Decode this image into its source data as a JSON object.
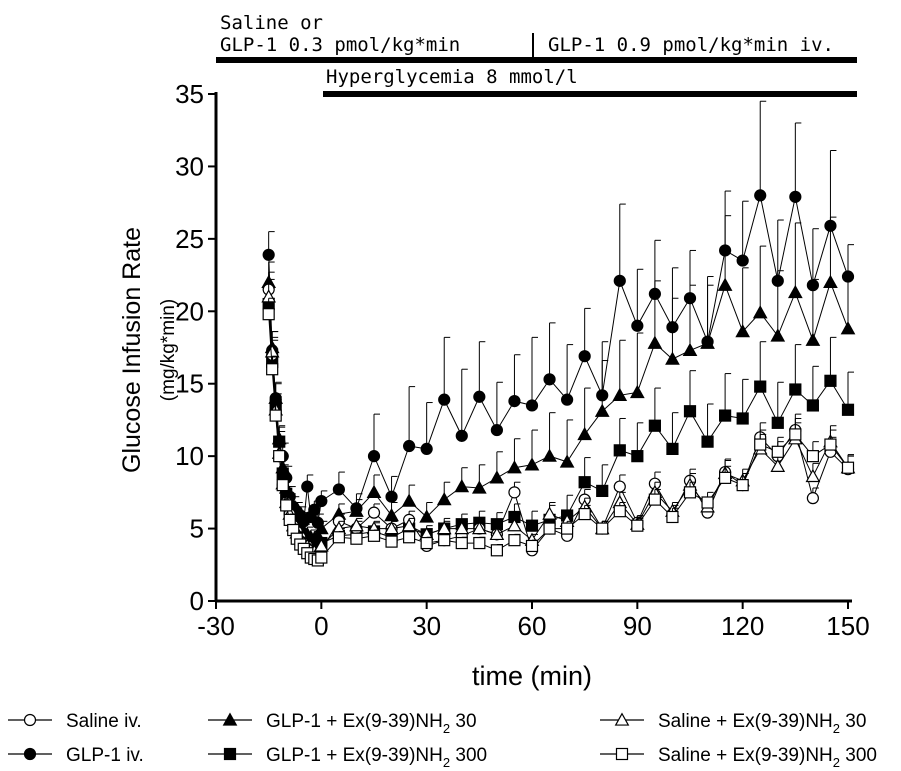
{
  "header": {
    "phase1_line1": "Saline or",
    "phase1_line2": "GLP-1 0.3 pmol/kg*min",
    "phase2": "GLP-1 0.9 pmol/kg*min iv.",
    "hyper": "Hyperglycemia 8 mmol/l"
  },
  "chart_data": {
    "type": "line",
    "xlabel": "time (min)",
    "ylabel": "Glucose Infusion Rate",
    "ylabel_unit": "(mg/kg*min)",
    "xlim": [
      -30,
      150
    ],
    "ylim": [
      0,
      35
    ],
    "xticks": [
      -30,
      0,
      30,
      60,
      90,
      120,
      150
    ],
    "yticks": [
      0,
      5,
      10,
      15,
      20,
      25,
      30,
      35
    ],
    "x": [
      -15,
      -14,
      -13,
      -12,
      -11,
      -10,
      -9,
      -8,
      -7,
      -6,
      -5,
      -4,
      -3,
      -2,
      -1,
      0,
      5,
      10,
      15,
      20,
      25,
      30,
      35,
      40,
      45,
      50,
      55,
      60,
      65,
      70,
      75,
      80,
      85,
      90,
      95,
      100,
      105,
      110,
      115,
      120,
      125,
      130,
      135,
      140,
      145,
      150
    ],
    "series": [
      {
        "name": "Saline iv.",
        "marker": "circle-open",
        "values": [
          21.5,
          17.0,
          13.0,
          10.0,
          8.0,
          6.8,
          6.0,
          5.2,
          4.8,
          4.4,
          4.0,
          3.8,
          3.4,
          3.2,
          3.2,
          3.5,
          5.5,
          5.0,
          6.1,
          5.0,
          5.6,
          3.8,
          4.2,
          4.5,
          5.0,
          4.6,
          7.5,
          3.5,
          5.0,
          4.5,
          7.0,
          5.0,
          7.9,
          5.4,
          8.1,
          6.0,
          8.3,
          6.1,
          8.9,
          8.0,
          11.3,
          10.0,
          11.8,
          7.1,
          10.3,
          9.1
        ],
        "errors": [
          1.2,
          1.0,
          0.9,
          0.8,
          0.6,
          0.5,
          0.5,
          0.4,
          0.4,
          0.4,
          0.3,
          0.3,
          0.3,
          0.3,
          0.3,
          0.3,
          0.5,
          0.5,
          0.6,
          0.5,
          0.6,
          0.4,
          0.4,
          0.4,
          0.5,
          0.5,
          0.7,
          0.4,
          0.5,
          0.5,
          0.7,
          0.5,
          0.8,
          0.5,
          0.8,
          0.6,
          0.8,
          0.6,
          0.9,
          0.8,
          1.0,
          1.0,
          1.1,
          0.7,
          1.0,
          0.9
        ]
      },
      {
        "name": "GLP-1 iv.",
        "marker": "circle-filled",
        "values": [
          23.9,
          17.3,
          14.0,
          11.0,
          10.0,
          8.5,
          7.2,
          6.5,
          6.2,
          5.9,
          5.5,
          7.9,
          5.8,
          6.3,
          5.4,
          6.9,
          7.7,
          6.4,
          10.0,
          7.2,
          10.7,
          10.5,
          13.9,
          11.4,
          14.1,
          11.8,
          13.8,
          13.5,
          15.3,
          13.9,
          16.9,
          14.2,
          22.1,
          19.0,
          21.2,
          18.9,
          20.9,
          17.9,
          24.2,
          23.5,
          28.0,
          22.1,
          27.9,
          21.8,
          25.9,
          22.4
        ],
        "errors": [
          1.6,
          1.3,
          1.1,
          1.0,
          0.9,
          0.8,
          0.7,
          0.7,
          0.6,
          0.6,
          0.6,
          0.8,
          0.6,
          0.6,
          0.6,
          0.7,
          1.2,
          1.0,
          2.9,
          1.4,
          4.1,
          3.2,
          4.3,
          4.6,
          3.8,
          3.3,
          3.2,
          4.7,
          3.9,
          3.8,
          3.3,
          3.7,
          5.3,
          3.9,
          3.7,
          4.1,
          3.3,
          3.9,
          4.1,
          4.1,
          6.5,
          4.2,
          5.1,
          3.9,
          5.2,
          2.2
        ]
      },
      {
        "name": "GLP-1 + Ex(9-39)NH2 30",
        "name_main": "GLP-1 + Ex(9-39)NH",
        "name_sub": "2",
        "name_tail": " 30",
        "marker": "triangle-filled",
        "values": [
          22.0,
          17.5,
          14.0,
          11.2,
          9.2,
          7.8,
          6.8,
          6.0,
          5.5,
          5.1,
          4.8,
          4.6,
          4.4,
          4.3,
          4.5,
          5.0,
          6.0,
          6.2,
          7.5,
          5.9,
          6.9,
          5.8,
          7.0,
          7.9,
          7.8,
          8.5,
          9.2,
          9.4,
          10.0,
          9.6,
          11.5,
          13.1,
          14.2,
          14.4,
          17.8,
          16.7,
          17.3,
          17.8,
          21.8,
          18.6,
          19.9,
          18.3,
          21.3,
          18.0,
          22.0,
          18.8
        ],
        "errors": [
          1.4,
          1.1,
          1.0,
          0.9,
          0.8,
          0.7,
          0.6,
          0.6,
          0.5,
          0.5,
          0.5,
          0.5,
          0.5,
          0.5,
          0.5,
          0.5,
          0.7,
          0.8,
          1.2,
          0.9,
          1.1,
          1.0,
          1.2,
          1.3,
          1.6,
          1.8,
          2.0,
          2.4,
          3.0,
          2.9,
          3.2,
          3.5,
          3.8,
          4.1,
          4.3,
          4.2,
          4.5,
          4.6,
          4.8,
          4.4,
          4.6,
          4.5,
          4.8,
          4.2,
          4.5,
          3.5
        ]
      },
      {
        "name": "GLP-1 + Ex(9-39)NH2 300",
        "name_main": "GLP-1 + Ex(9-39)NH",
        "name_sub": "2",
        "name_tail": " 300",
        "marker": "square-filled",
        "values": [
          20.5,
          16.5,
          13.5,
          11.0,
          8.8,
          7.4,
          6.4,
          5.6,
          5.0,
          4.6,
          4.2,
          4.0,
          3.8,
          3.8,
          4.0,
          4.0,
          4.5,
          4.6,
          4.8,
          4.4,
          5.0,
          4.6,
          5.0,
          5.3,
          5.4,
          5.3,
          5.8,
          5.2,
          5.6,
          5.9,
          8.2,
          7.6,
          10.4,
          10.0,
          12.1,
          10.5,
          13.1,
          11.0,
          12.8,
          12.6,
          14.8,
          12.3,
          14.6,
          13.5,
          15.2,
          13.2
        ],
        "errors": [
          1.1,
          0.9,
          0.8,
          0.7,
          0.6,
          0.5,
          0.5,
          0.4,
          0.4,
          0.4,
          0.3,
          0.3,
          0.3,
          0.3,
          0.3,
          0.3,
          0.5,
          0.5,
          0.6,
          0.5,
          0.6,
          0.6,
          0.7,
          0.7,
          0.8,
          0.8,
          0.9,
          1.0,
          1.2,
          1.4,
          1.7,
          1.8,
          2.2,
          2.3,
          2.6,
          2.5,
          2.8,
          2.6,
          2.9,
          2.7,
          3.1,
          2.8,
          3.1,
          2.7,
          3.0,
          2.6
        ]
      },
      {
        "name": "Saline + Ex(9-39)NH2 30",
        "name_main": "Saline + Ex(9-39)NH",
        "name_sub": "2",
        "name_tail": " 30",
        "marker": "triangle-open",
        "values": [
          21.0,
          17.2,
          13.2,
          10.2,
          8.1,
          6.8,
          6.0,
          5.2,
          4.7,
          4.3,
          4.0,
          3.8,
          3.5,
          3.4,
          3.4,
          3.8,
          5.0,
          5.2,
          5.0,
          5.0,
          5.2,
          4.6,
          5.0,
          5.0,
          5.0,
          4.6,
          5.2,
          4.2,
          6.0,
          5.5,
          6.5,
          5.0,
          6.8,
          5.3,
          7.5,
          6.2,
          8.0,
          6.5,
          8.8,
          8.3,
          10.5,
          9.3,
          11.2,
          8.6,
          11.0,
          9.2
        ],
        "errors": [
          1.2,
          1.0,
          0.9,
          0.8,
          0.6,
          0.5,
          0.5,
          0.4,
          0.4,
          0.4,
          0.3,
          0.3,
          0.3,
          0.3,
          0.3,
          0.3,
          0.5,
          0.5,
          0.5,
          0.5,
          0.5,
          0.4,
          0.5,
          0.5,
          0.5,
          0.4,
          0.5,
          0.4,
          0.6,
          0.5,
          0.6,
          0.5,
          0.7,
          0.5,
          0.7,
          0.6,
          0.8,
          0.6,
          0.9,
          0.8,
          1.0,
          0.9,
          1.1,
          0.9,
          1.1,
          0.9
        ]
      },
      {
        "name": "Saline + Ex(9-39)NH2 300",
        "name_main": "Saline + Ex(9-39)NH",
        "name_sub": "2",
        "name_tail": " 300",
        "marker": "square-open",
        "values": [
          19.8,
          16.0,
          12.8,
          10.0,
          8.0,
          6.6,
          5.6,
          4.9,
          4.3,
          3.9,
          3.6,
          3.3,
          3.0,
          2.9,
          2.8,
          3.0,
          4.4,
          4.3,
          4.5,
          4.1,
          4.4,
          4.0,
          4.2,
          4.0,
          4.0,
          3.5,
          4.2,
          3.8,
          5.0,
          5.0,
          6.0,
          5.0,
          6.2,
          5.2,
          7.0,
          5.8,
          7.5,
          6.8,
          8.5,
          8.0,
          10.8,
          10.3,
          11.5,
          10.0,
          10.8,
          9.2
        ],
        "errors": [
          1.1,
          0.9,
          0.8,
          0.7,
          0.6,
          0.5,
          0.4,
          0.4,
          0.4,
          0.3,
          0.3,
          0.3,
          0.3,
          0.3,
          0.3,
          0.3,
          0.4,
          0.4,
          0.4,
          0.4,
          0.4,
          0.4,
          0.4,
          0.4,
          0.4,
          0.4,
          0.4,
          0.4,
          0.5,
          0.5,
          0.6,
          0.5,
          0.6,
          0.5,
          0.7,
          0.6,
          0.7,
          0.7,
          0.8,
          0.8,
          1.0,
          1.0,
          1.1,
          1.0,
          1.0,
          0.9
        ]
      }
    ]
  },
  "legend": [
    {
      "main": "Saline iv.",
      "sub": "",
      "tail": "",
      "marker": "circle-open"
    },
    {
      "main": "GLP-1 iv.",
      "sub": "",
      "tail": "",
      "marker": "circle-filled"
    },
    {
      "main": "GLP-1 + Ex(9-39)NH",
      "sub": "2",
      "tail": " 30",
      "marker": "triangle-filled"
    },
    {
      "main": "GLP-1 + Ex(9-39)NH",
      "sub": "2",
      "tail": " 300",
      "marker": "square-filled"
    },
    {
      "main": "Saline + Ex(9-39)NH",
      "sub": "2",
      "tail": " 30",
      "marker": "triangle-open"
    },
    {
      "main": "Saline + Ex(9-39)NH",
      "sub": "2",
      "tail": " 300",
      "marker": "square-open"
    }
  ]
}
